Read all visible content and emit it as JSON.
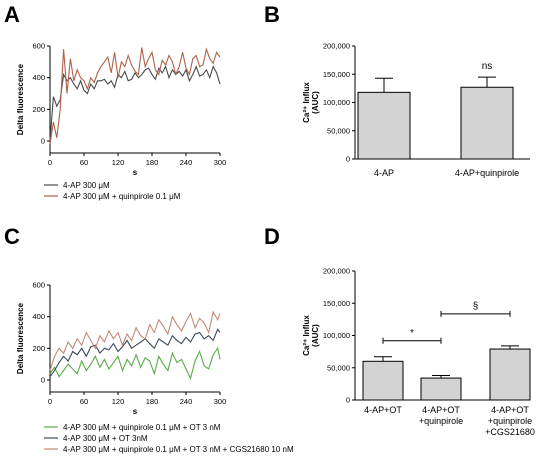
{
  "panels": {
    "A": "A",
    "B": "B",
    "C": "C",
    "D": "D"
  },
  "chart_data": [
    {
      "id": "A",
      "type": "line",
      "xlabel": "s",
      "ylabel": "Delta fluorescence",
      "xlim": [
        0,
        300
      ],
      "ylim": [
        -60,
        600
      ],
      "xticks": [
        0,
        60,
        120,
        180,
        240,
        300
      ],
      "yticks": [
        0,
        200,
        400,
        600
      ],
      "legend_position": "bottom",
      "series": [
        {
          "name": "4-AP 300 μM",
          "color": "#4a4a4a",
          "x": [
            0,
            6,
            12,
            18,
            24,
            30,
            36,
            42,
            48,
            54,
            60,
            66,
            72,
            78,
            84,
            90,
            96,
            102,
            108,
            114,
            120,
            126,
            132,
            138,
            144,
            150,
            156,
            162,
            168,
            174,
            180,
            186,
            192,
            198,
            204,
            210,
            216,
            222,
            228,
            234,
            240,
            246,
            252,
            258,
            264,
            270,
            276,
            282,
            288,
            294,
            300
          ],
          "y": [
            0,
            280,
            220,
            260,
            420,
            380,
            400,
            360,
            330,
            380,
            320,
            300,
            360,
            330,
            380,
            380,
            390,
            360,
            380,
            340,
            420,
            400,
            440,
            380,
            390,
            430,
            400,
            420,
            450,
            460,
            420,
            390,
            460,
            430,
            470,
            400,
            450,
            420,
            440,
            410,
            450,
            380,
            420,
            470,
            410,
            420,
            450,
            400,
            470,
            430,
            360
          ]
        },
        {
          "name": "4-AP 300 μM + quinpirole 0.1 μM",
          "color": "#b0604a",
          "x": [
            0,
            6,
            12,
            18,
            24,
            30,
            36,
            42,
            48,
            54,
            60,
            66,
            72,
            78,
            84,
            90,
            96,
            102,
            108,
            114,
            120,
            126,
            132,
            138,
            144,
            150,
            156,
            162,
            168,
            174,
            180,
            186,
            192,
            198,
            204,
            210,
            216,
            222,
            228,
            234,
            240,
            246,
            252,
            258,
            264,
            270,
            276,
            282,
            288,
            294,
            300
          ],
          "y": [
            -20,
            120,
            20,
            200,
            580,
            300,
            520,
            380,
            450,
            400,
            380,
            330,
            400,
            370,
            430,
            470,
            500,
            530,
            430,
            560,
            400,
            500,
            470,
            540,
            480,
            440,
            420,
            590,
            470,
            520,
            560,
            450,
            420,
            510,
            480,
            540,
            500,
            420,
            470,
            560,
            460,
            420,
            520,
            540,
            470,
            480,
            580,
            520,
            490,
            560,
            530
          ]
        }
      ]
    },
    {
      "id": "B",
      "type": "bar",
      "ylabel": "Ca²⁺ Influx (AUC)",
      "ylim": [
        0,
        200000
      ],
      "yticks": [
        "0",
        "50,000",
        "100,000",
        "150,000",
        "200,000"
      ],
      "categories": [
        "4-AP",
        "4-AP+quinpirole"
      ],
      "values": [
        118000,
        127000
      ],
      "errors": [
        25000,
        18000
      ],
      "bar_color": "#d3d3d3",
      "annotation": "ns"
    },
    {
      "id": "C",
      "type": "line",
      "xlabel": "s",
      "ylabel": "Delta fluorescence",
      "xlim": [
        0,
        300
      ],
      "ylim": [
        -60,
        600
      ],
      "xticks": [
        0,
        60,
        120,
        180,
        240,
        300
      ],
      "yticks": [
        0,
        200,
        400,
        600
      ],
      "legend_position": "bottom",
      "series": [
        {
          "name": "4-AP 300 μM + quinpirole 0.1 μM + OT 3 nM",
          "color": "#5aaa4a",
          "x": [
            0,
            8,
            16,
            24,
            32,
            40,
            48,
            56,
            64,
            72,
            80,
            88,
            96,
            104,
            112,
            120,
            128,
            136,
            144,
            152,
            160,
            168,
            176,
            184,
            192,
            200,
            208,
            216,
            224,
            232,
            240,
            248,
            256,
            264,
            272,
            280,
            288,
            296,
            300
          ],
          "y": [
            40,
            80,
            20,
            60,
            100,
            70,
            40,
            120,
            60,
            100,
            150,
            80,
            130,
            70,
            110,
            150,
            60,
            130,
            90,
            160,
            80,
            140,
            120,
            40,
            150,
            100,
            60,
            170,
            110,
            130,
            70,
            10,
            120,
            180,
            90,
            70,
            160,
            200,
            130
          ]
        },
        {
          "name": "4-AP 300 μM + OT 3nM",
          "color": "#3d4a5a",
          "x": [
            0,
            8,
            16,
            24,
            32,
            40,
            48,
            56,
            64,
            72,
            80,
            88,
            96,
            104,
            112,
            120,
            128,
            136,
            144,
            152,
            160,
            168,
            176,
            184,
            192,
            200,
            208,
            216,
            224,
            232,
            240,
            248,
            256,
            264,
            272,
            280,
            288,
            296,
            300
          ],
          "y": [
            20,
            60,
            110,
            150,
            120,
            180,
            160,
            200,
            150,
            210,
            220,
            170,
            200,
            190,
            230,
            180,
            210,
            250,
            200,
            220,
            240,
            260,
            230,
            200,
            260,
            240,
            220,
            280,
            250,
            230,
            270,
            240,
            290,
            300,
            260,
            280,
            250,
            320,
            300
          ]
        },
        {
          "name": "4-AP 300 μM + quinpirole 0.1 μM + OT 3 nM + CGS21680 10 nM",
          "color": "#c08a78",
          "x": [
            0,
            8,
            16,
            24,
            32,
            40,
            48,
            56,
            64,
            72,
            80,
            88,
            96,
            104,
            112,
            120,
            128,
            136,
            144,
            152,
            160,
            168,
            176,
            184,
            192,
            200,
            208,
            216,
            224,
            232,
            240,
            248,
            256,
            264,
            272,
            280,
            288,
            296,
            300
          ],
          "y": [
            60,
            150,
            200,
            170,
            240,
            200,
            260,
            220,
            300,
            250,
            200,
            280,
            240,
            310,
            260,
            300,
            220,
            290,
            250,
            330,
            280,
            260,
            350,
            300,
            380,
            340,
            290,
            400,
            350,
            310,
            370,
            420,
            330,
            390,
            360,
            300,
            430,
            380,
            420
          ]
        }
      ]
    },
    {
      "id": "D",
      "type": "bar",
      "ylabel": "Ca²⁺ Influx (AUC)",
      "ylim": [
        0,
        200000
      ],
      "yticks": [
        "0",
        "50,000",
        "100,000",
        "150,000",
        "200,000"
      ],
      "categories": [
        [
          "4-AP+OT"
        ],
        [
          "4-AP+OT",
          "+quinpirole"
        ],
        [
          "4-AP+OT",
          "+quinpirole",
          "+CGS21680"
        ]
      ],
      "values": [
        60000,
        34000,
        79000
      ],
      "errors": [
        7000,
        4000,
        5000
      ],
      "bar_color": "#d3d3d3",
      "brackets": [
        {
          "from": 0,
          "to": 1,
          "label": "*"
        },
        {
          "from": 1,
          "to": 2,
          "label": "§"
        }
      ]
    }
  ]
}
